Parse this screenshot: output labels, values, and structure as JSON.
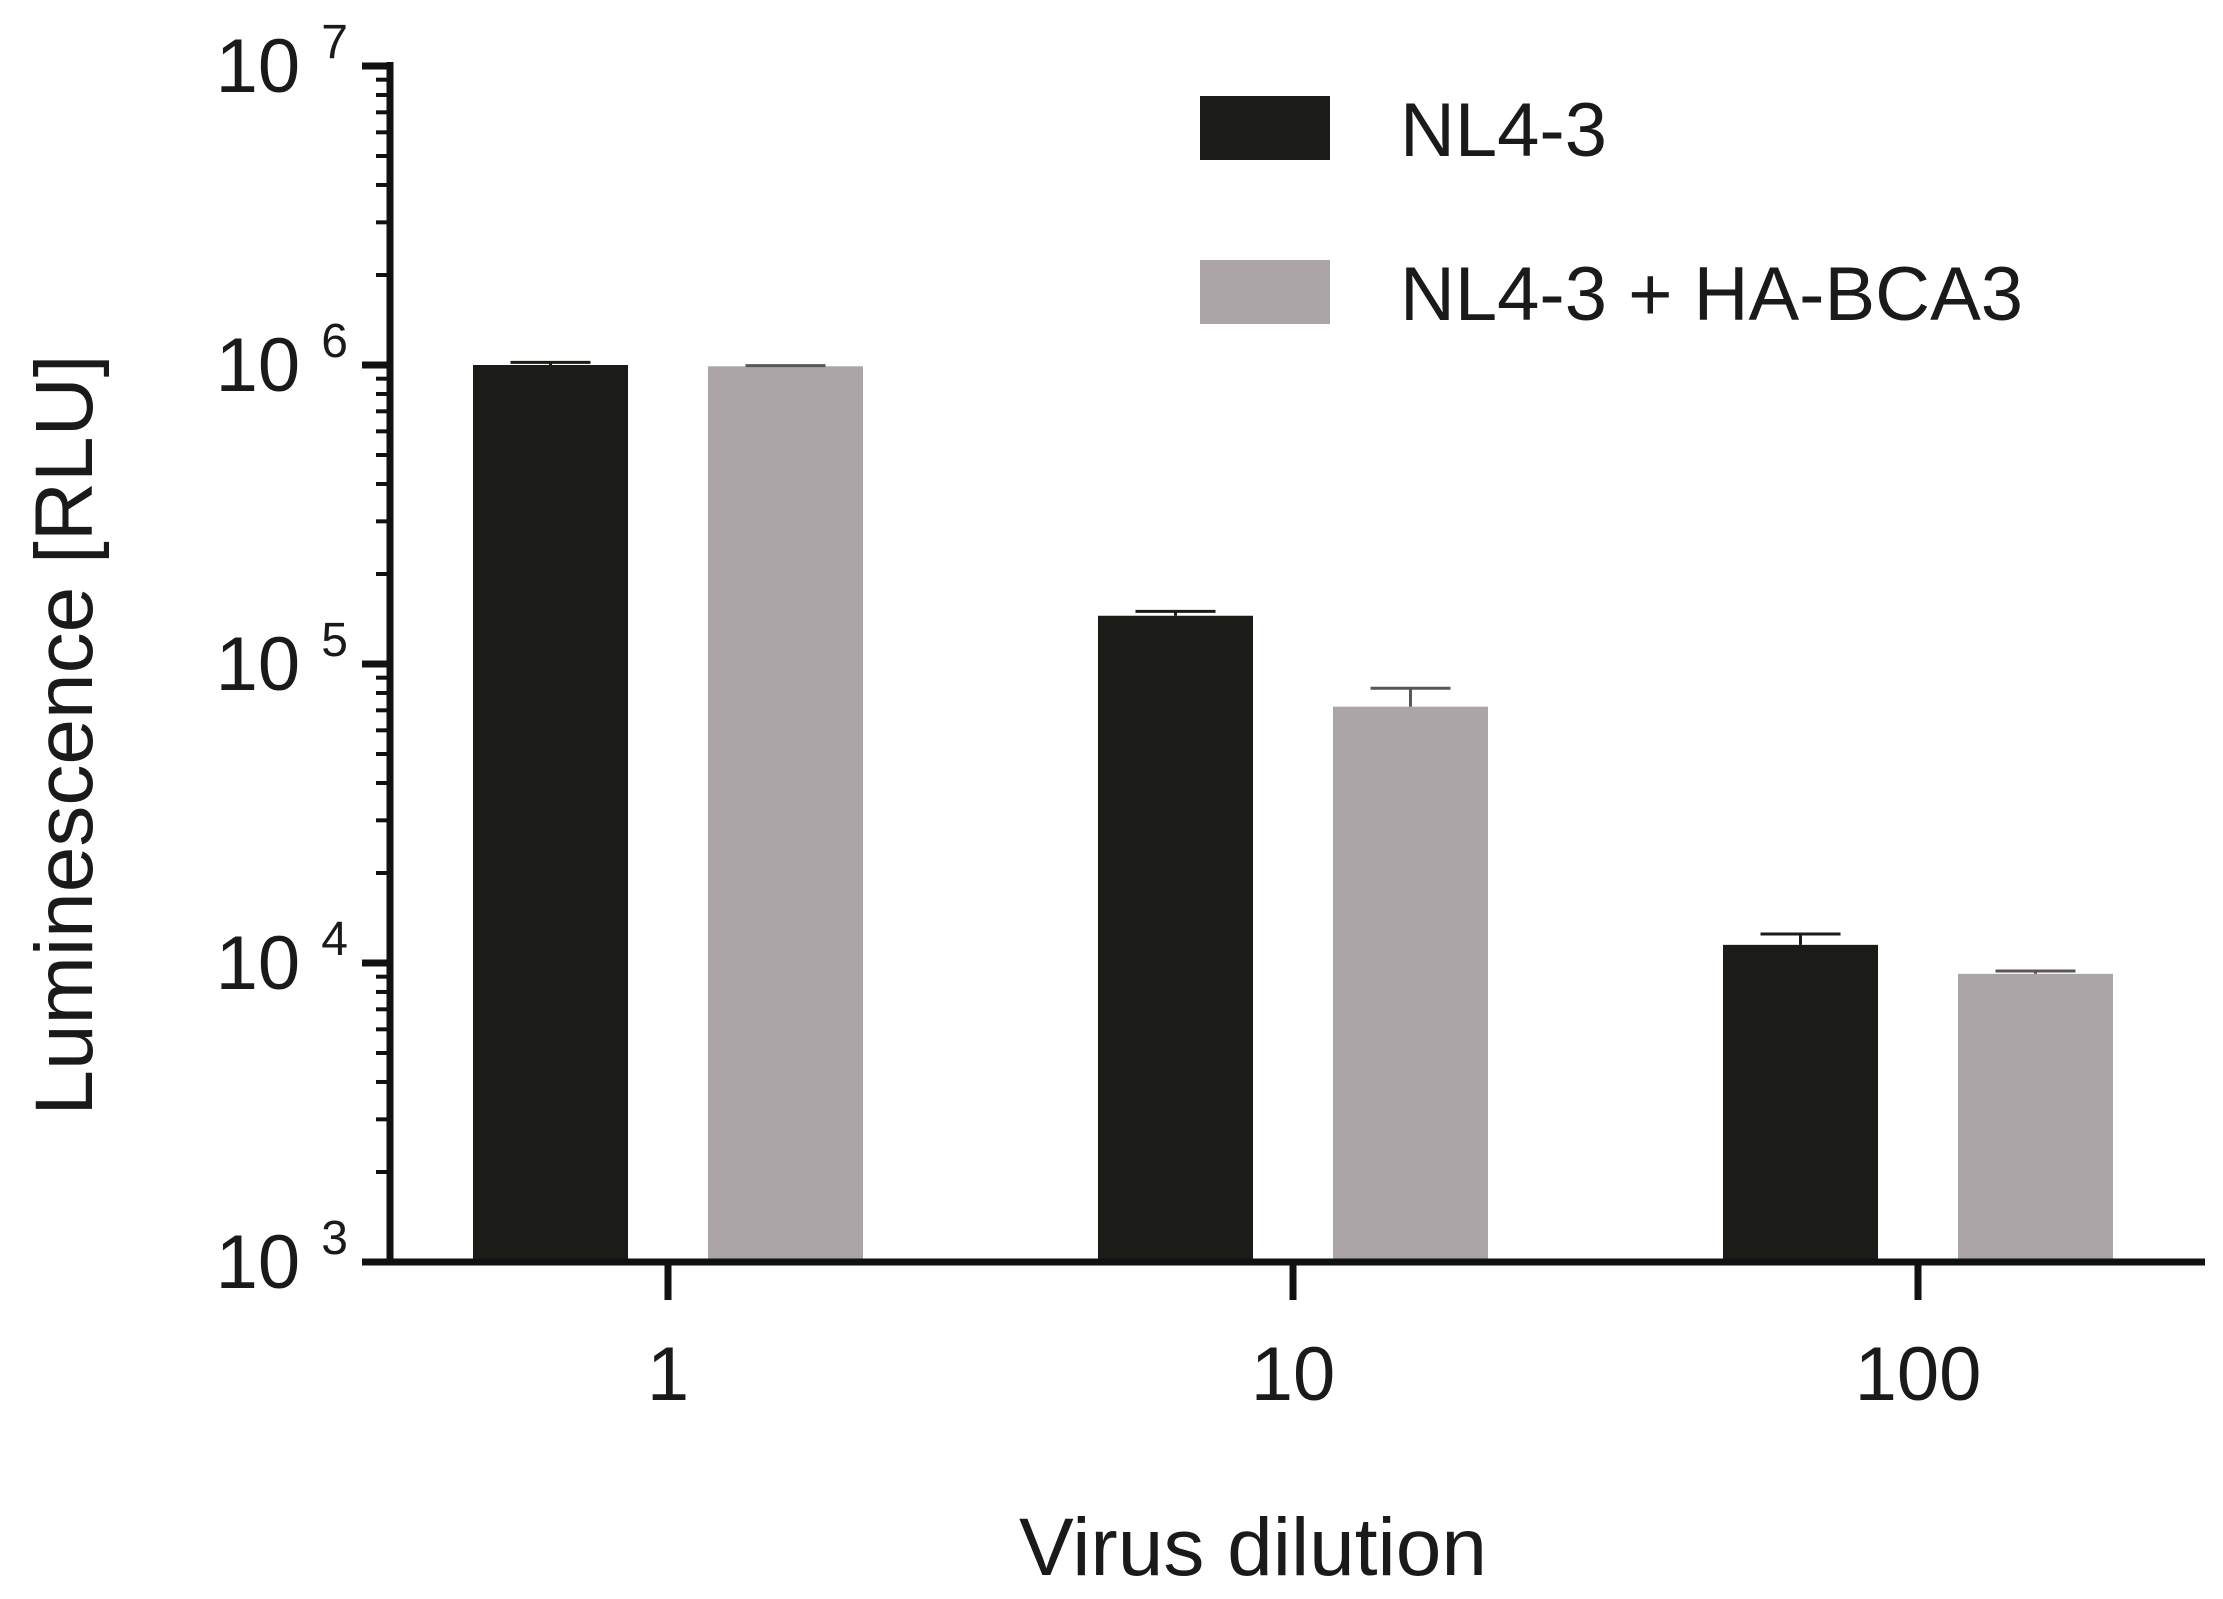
{
  "chart_data": {
    "type": "bar",
    "categories": [
      "1",
      "10",
      "100"
    ],
    "series": [
      {
        "name": "NL4-3",
        "color": "#1b1b18",
        "values": [
          1000000,
          145000,
          11500
        ],
        "error_upper": [
          1020000,
          150000,
          12500
        ]
      },
      {
        "name": "NL4-3 + HA-BCA3",
        "color": "#aba5a8",
        "values": [
          990000,
          72000,
          9200
        ],
        "error_upper": [
          995000,
          83000,
          9400
        ]
      }
    ],
    "xlabel": "Virus dilution",
    "ylabel": "Luminescence [RLU]",
    "yscale": "log",
    "ylim": [
      1000,
      10000000
    ],
    "yticks": [
      {
        "base": "10",
        "exp": "3",
        "value": 1000
      },
      {
        "base": "10",
        "exp": "4",
        "value": 10000
      },
      {
        "base": "10",
        "exp": "5",
        "value": 100000
      },
      {
        "base": "10",
        "exp": "6",
        "value": 1000000
      },
      {
        "base": "10",
        "exp": "7",
        "value": 10000000
      }
    ],
    "grid": false,
    "legend_position": "top-right"
  }
}
